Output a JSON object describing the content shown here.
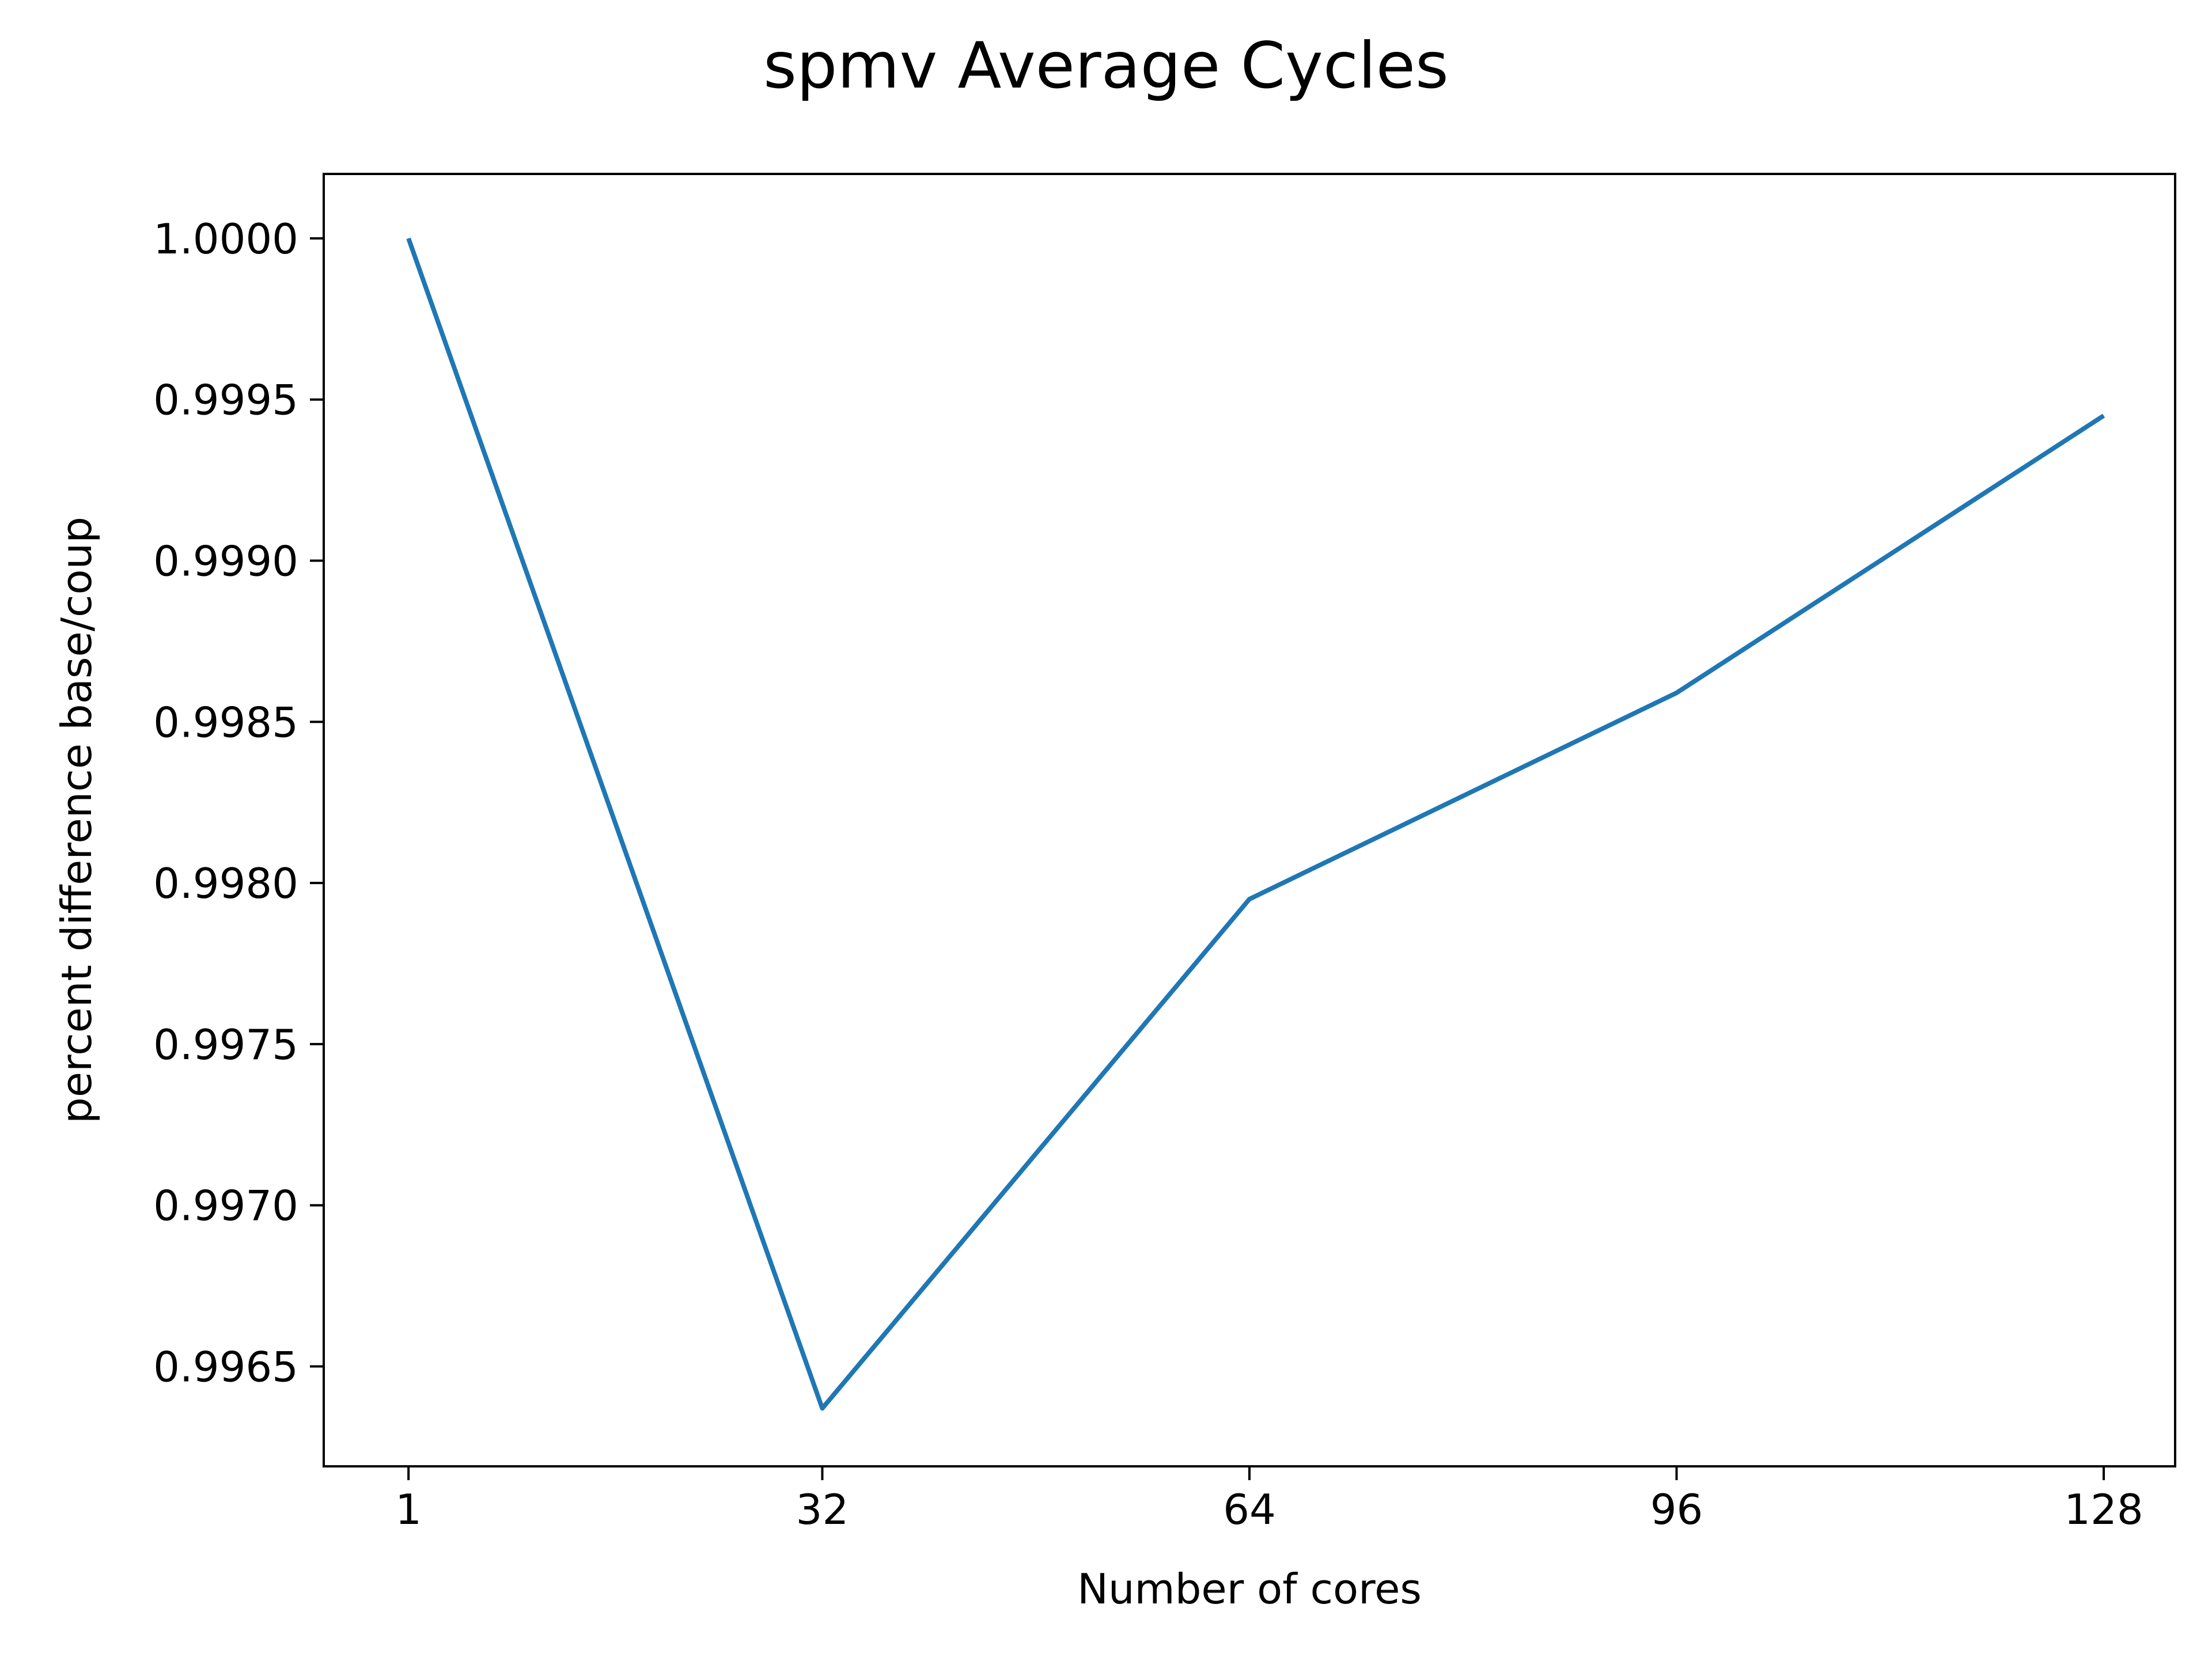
{
  "chart_data": {
    "type": "line",
    "title": "spmv Average Cycles",
    "xlabel": "Number of cores",
    "ylabel": "percent difference base/coup",
    "x": [
      1,
      32,
      64,
      96,
      128
    ],
    "x_ticks": [
      1,
      32,
      64,
      96,
      128
    ],
    "x_tick_labels": [
      "1",
      "32",
      "64",
      "96",
      "128"
    ],
    "y_ticks": [
      0.9965,
      0.997,
      0.9975,
      0.998,
      0.9985,
      0.999,
      0.9995,
      1.0
    ],
    "y_tick_labels": [
      "0.9965",
      "0.9970",
      "0.9975",
      "0.9980",
      "0.9985",
      "0.9990",
      "0.9995",
      "1.0000"
    ],
    "xlim": [
      -5.35,
      133.35
    ],
    "ylim": [
      0.99619,
      1.0002
    ],
    "grid": false,
    "series": [
      {
        "values": [
          1.0,
          0.99637,
          0.99795,
          0.99859,
          0.99945
        ],
        "color": "#1f77b4"
      }
    ]
  }
}
